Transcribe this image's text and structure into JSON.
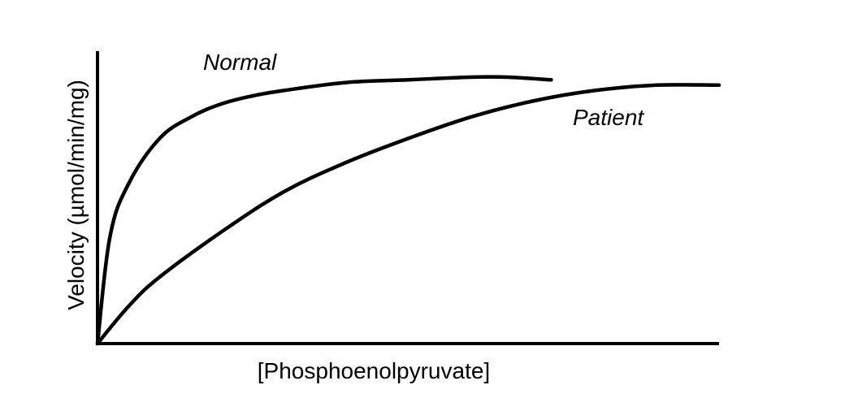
{
  "chart_data": {
    "type": "line",
    "xlabel": "[Phosphoenolpyruvate]",
    "ylabel": "Velocity (µmol/min/mg)",
    "xlim": [
      0,
      1
    ],
    "ylim": [
      0,
      1
    ],
    "ticks_shown": false,
    "grid": false,
    "legend": "inline labels",
    "series": [
      {
        "name": "Normal",
        "x": [
          0,
          0.02,
          0.05,
          0.1,
          0.15,
          0.2,
          0.25,
          0.3,
          0.4,
          0.5,
          0.6,
          0.66,
          0.73
        ],
        "y": [
          0,
          0.4,
          0.6,
          0.77,
          0.85,
          0.9,
          0.93,
          0.95,
          0.98,
          0.99,
          1.0,
          1.0,
          0.99
        ]
      },
      {
        "name": "Patient",
        "x": [
          0,
          0.05,
          0.1,
          0.2,
          0.3,
          0.4,
          0.5,
          0.6,
          0.7,
          0.8,
          0.9,
          1.0
        ],
        "y": [
          0,
          0.14,
          0.25,
          0.42,
          0.57,
          0.68,
          0.77,
          0.85,
          0.91,
          0.95,
          0.97,
          0.97
        ]
      }
    ],
    "colors": {
      "line": "#000000",
      "background": "#ffffff"
    }
  }
}
